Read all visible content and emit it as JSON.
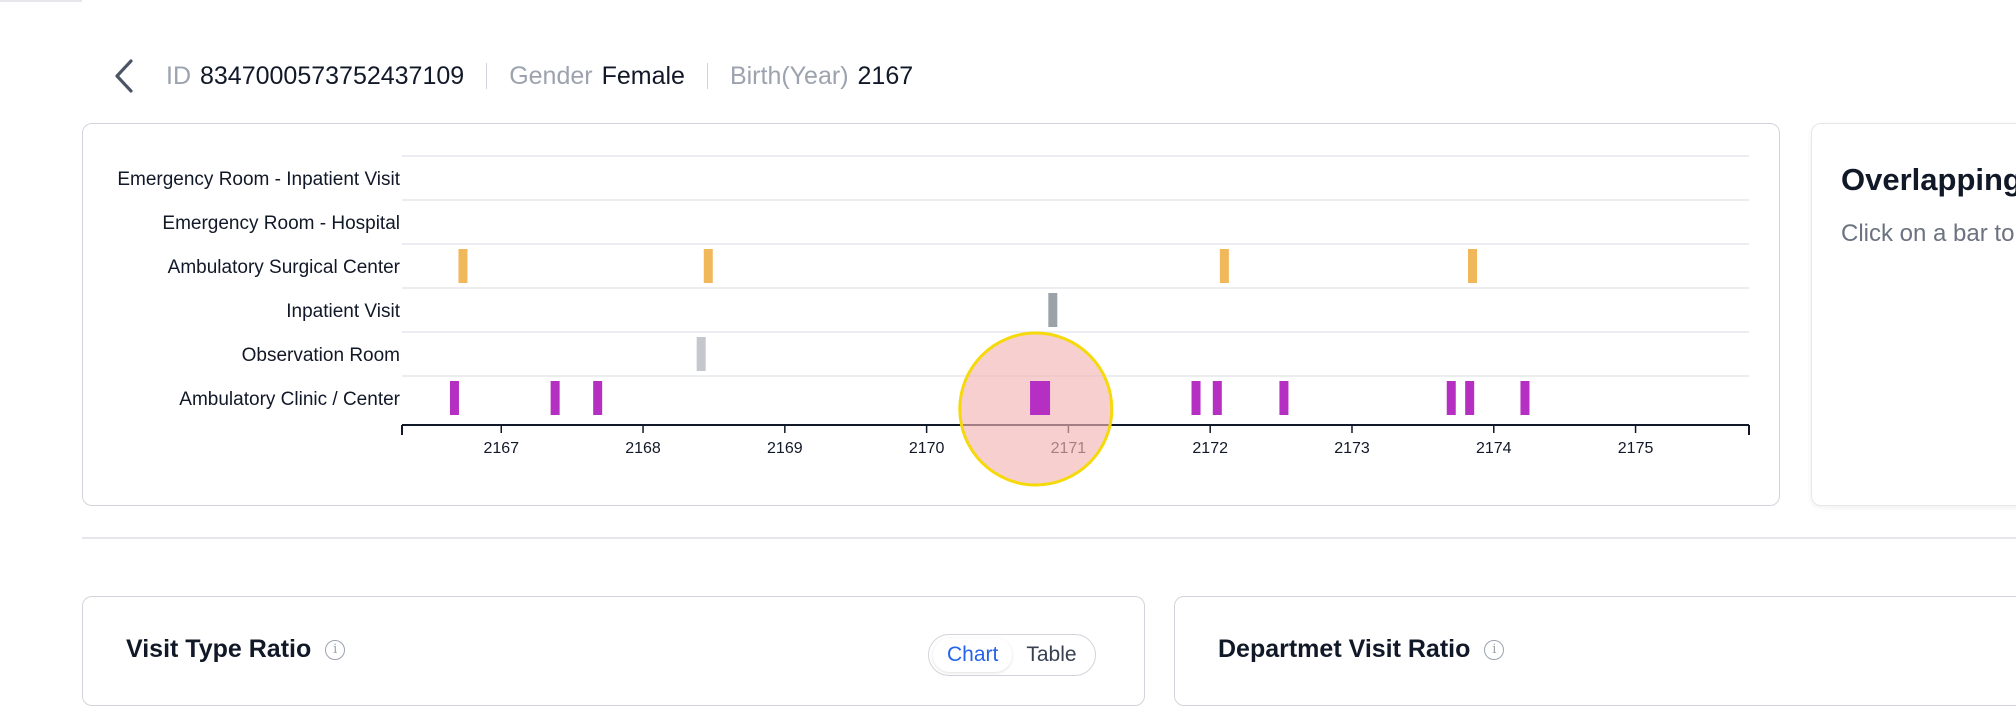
{
  "header": {
    "id_label": "ID",
    "id_value": "8347000573752437109",
    "gender_label": "Gender",
    "gender_value": "Female",
    "birth_label": "Birth(Year)",
    "birth_value": "2167"
  },
  "chart_data": {
    "type": "timeline",
    "rows": [
      "Emergency Room - Inpatient Visit",
      "Emergency Room - Hospital",
      "Ambulatory Surgical Center",
      "Inpatient Visit",
      "Observation Room",
      "Ambulatory Clinic / Center"
    ],
    "x_ticks": [
      "2167",
      "2168",
      "2169",
      "2170",
      "2171",
      "2172",
      "2173",
      "2174",
      "2175"
    ],
    "xlim": [
      2166.3,
      2175.8
    ],
    "events": [
      {
        "row": "Ambulatory Surgical Center",
        "x": 2166.73,
        "color": "#f0b85a"
      },
      {
        "row": "Ambulatory Surgical Center",
        "x": 2168.46,
        "color": "#f0b85a"
      },
      {
        "row": "Ambulatory Surgical Center",
        "x": 2172.1,
        "color": "#f0b85a"
      },
      {
        "row": "Ambulatory Surgical Center",
        "x": 2173.85,
        "color": "#f0b85a"
      },
      {
        "row": "Inpatient Visit",
        "x": 2170.89,
        "color": "#9ca3a8"
      },
      {
        "row": "Observation Room",
        "x": 2168.41,
        "color": "#c4c8cc"
      },
      {
        "row": "Ambulatory Clinic / Center",
        "x": 2166.67,
        "color": "#b42fc2"
      },
      {
        "row": "Ambulatory Clinic / Center",
        "x": 2167.38,
        "color": "#b42fc2"
      },
      {
        "row": "Ambulatory Clinic / Center",
        "x": 2167.68,
        "color": "#b42fc2"
      },
      {
        "row": "Ambulatory Clinic / Center",
        "x": 2170.8,
        "color": "#b42fc2",
        "wide": true
      },
      {
        "row": "Ambulatory Clinic / Center",
        "x": 2171.9,
        "color": "#b42fc2"
      },
      {
        "row": "Ambulatory Clinic / Center",
        "x": 2172.05,
        "color": "#b42fc2"
      },
      {
        "row": "Ambulatory Clinic / Center",
        "x": 2172.52,
        "color": "#b42fc2"
      },
      {
        "row": "Ambulatory Clinic / Center",
        "x": 2173.7,
        "color": "#b42fc2"
      },
      {
        "row": "Ambulatory Clinic / Center",
        "x": 2173.83,
        "color": "#b42fc2"
      },
      {
        "row": "Ambulatory Clinic / Center",
        "x": 2174.22,
        "color": "#b42fc2"
      }
    ],
    "highlight_x": 2170.77
  },
  "overlap": {
    "title": "Overlapping",
    "hint": "Click on a bar to"
  },
  "visit_card": {
    "title": "Visit Type Ratio",
    "toggle_chart": "Chart",
    "toggle_table": "Table"
  },
  "dept_card": {
    "title": "Departmet Visit Ratio"
  },
  "colors": {
    "surgical": "#f0b85a",
    "clinic": "#b42fc2",
    "inpatient": "#9ca3a8",
    "observation": "#c4c8cc",
    "highlight_fill": "#f3b5b5",
    "highlight_stroke": "#f5d90a"
  }
}
